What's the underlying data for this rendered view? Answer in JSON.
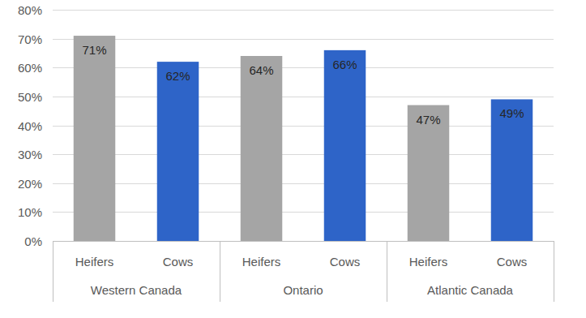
{
  "chart_data": {
    "type": "bar",
    "categories": [
      "Western Canada",
      "Ontario",
      "Atlantic Canada"
    ],
    "series": [
      {
        "name": "Heifers",
        "color": "#a5a5a5",
        "values": [
          71,
          64,
          47
        ],
        "value_labels": [
          "71%",
          "64%",
          "47%"
        ]
      },
      {
        "name": "Cows",
        "color": "#2e64c8",
        "values": [
          62,
          66,
          49
        ],
        "value_labels": [
          "62%",
          "66%",
          "49%"
        ]
      }
    ],
    "ylim": [
      0,
      80
    ],
    "yticks": [
      {
        "value": 0,
        "label": "0%"
      },
      {
        "value": 10,
        "label": "10%"
      },
      {
        "value": 20,
        "label": "20%"
      },
      {
        "value": 30,
        "label": "30%"
      },
      {
        "value": 40,
        "label": "40%"
      },
      {
        "value": 50,
        "label": "50%"
      },
      {
        "value": 60,
        "label": "60%"
      },
      {
        "value": 70,
        "label": "70%"
      },
      {
        "value": 80,
        "label": "80%"
      }
    ],
    "grid": true,
    "data_labels": true
  }
}
